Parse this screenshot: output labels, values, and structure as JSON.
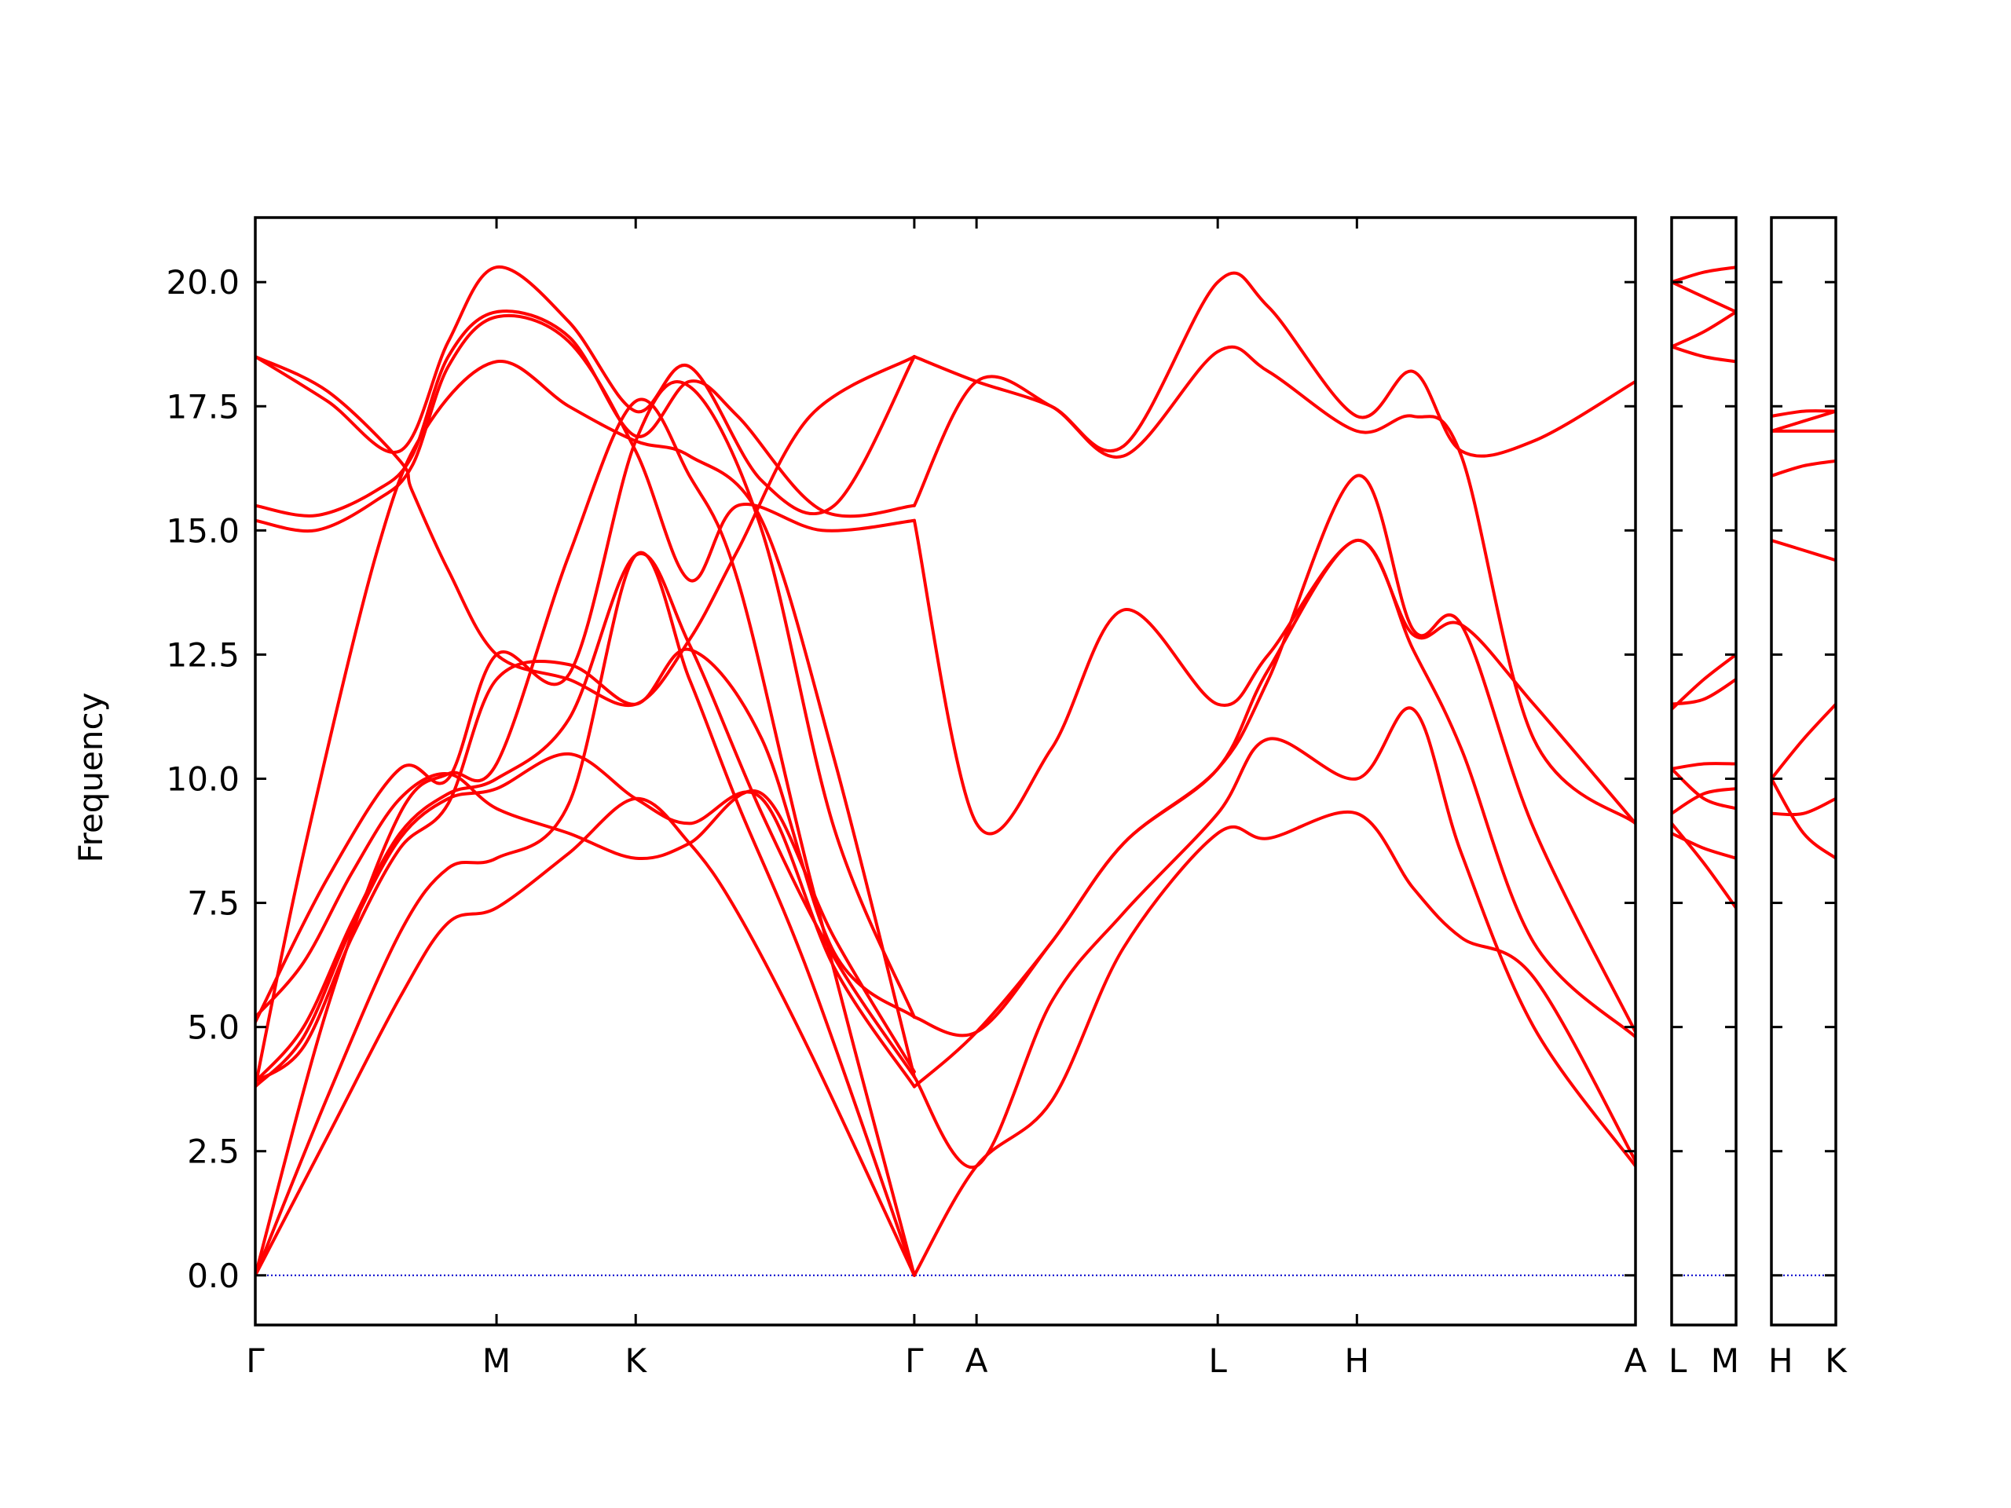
{
  "chart_data": {
    "type": "line",
    "ylabel": "Frequency",
    "ylim": [
      -1.0,
      21.3
    ],
    "yticks": [
      "0.0",
      "2.5",
      "5.0",
      "7.5",
      "10.0",
      "12.5",
      "15.0",
      "17.5",
      "20.0"
    ],
    "colors": {
      "band": "#ff0000",
      "zero_line": "#0000cc",
      "frame": "#000000"
    },
    "panels": [
      {
        "id": "main",
        "xlabels": [
          "Γ",
          "M",
          "K",
          "Γ",
          "A",
          "L",
          "H",
          "A"
        ],
        "kpath": [
          0,
          1,
          1.577,
          2.732,
          2.99,
          3.99,
          4.567,
          5.722
        ],
        "series": [
          {
            "x": [
              0,
              0.3,
              0.6,
              0.8,
              1.0,
              1.3,
              1.577,
              1.8,
              2.0,
              2.3,
              2.732
            ],
            "y": [
              0.0,
              2.8,
              5.6,
              7.1,
              7.4,
              8.5,
              9.6,
              8.7,
              7.3,
              4.5,
              0.0
            ]
          },
          {
            "x": [
              0,
              0.3,
              0.6,
              0.8,
              1.0,
              1.3,
              1.577,
              1.8,
              2.0,
              2.3,
              2.732
            ],
            "y": [
              0.0,
              3.6,
              6.9,
              8.2,
              8.4,
              9.5,
              14.5,
              12.0,
              9.5,
              6.0,
              0.0
            ]
          },
          {
            "x": [
              0,
              0.3,
              0.6,
              0.8,
              1.0,
              1.3,
              1.577,
              1.8,
              2.0,
              2.3,
              2.732
            ],
            "y": [
              0.0,
              5.4,
              9.3,
              10.1,
              10.3,
              14.5,
              17.6,
              16.1,
              14.0,
              8.0,
              0.0
            ]
          },
          {
            "x": [
              0,
              0.2,
              0.4,
              0.6,
              0.8,
              1.0,
              1.3,
              1.577,
              1.8,
              2.1,
              2.4,
              2.732
            ],
            "y": [
              3.8,
              4.8,
              7.0,
              8.8,
              9.6,
              9.8,
              10.5,
              9.6,
              9.1,
              9.6,
              6.2,
              3.8
            ]
          },
          {
            "x": [
              0,
              0.2,
              0.4,
              0.6,
              0.8,
              1.0,
              1.3,
              1.577,
              1.8,
              2.1,
              2.4,
              2.732
            ],
            "y": [
              3.9,
              5.0,
              7.1,
              8.9,
              9.7,
              10.0,
              11.2,
              14.5,
              12.7,
              9.3,
              6.4,
              4.0
            ]
          },
          {
            "x": [
              0,
              0.2,
              0.4,
              0.6,
              0.8,
              1.0,
              1.3,
              1.577,
              1.8,
              2.1,
              2.4,
              2.732
            ],
            "y": [
              5.2,
              6.3,
              8.1,
              9.6,
              10.1,
              9.4,
              8.9,
              8.4,
              8.7,
              9.7,
              6.8,
              4.1
            ]
          },
          {
            "x": [
              0,
              0.2,
              0.4,
              0.6,
              0.8,
              1.0,
              1.3,
              1.577,
              1.8,
              2.1,
              2.4,
              2.732
            ],
            "y": [
              3.9,
              4.6,
              6.8,
              8.6,
              9.5,
              12.0,
              12.3,
              11.5,
              12.6,
              10.8,
              6.5,
              5.2
            ]
          },
          {
            "x": [
              0,
              0.3,
              0.6,
              0.8,
              1.0,
              1.3,
              1.577,
              1.8,
              2.1,
              2.4,
              2.732
            ],
            "y": [
              5.1,
              8.0,
              10.2,
              10.0,
              12.5,
              12.1,
              16.8,
              17.9,
              15.0,
              9.0,
              5.2
            ]
          },
          {
            "x": [
              0,
              0.2,
              0.5,
              0.7,
              1.0,
              1.3,
              1.577,
              1.8,
              2.1,
              2.4,
              2.732
            ],
            "y": [
              3.8,
              8.5,
              14.5,
              17.0,
              18.4,
              17.5,
              16.8,
              16.5,
              15.2,
              10.4,
              4.0
            ]
          },
          {
            "x": [
              0,
              0.25,
              0.5,
              0.65,
              0.8,
              1.0,
              1.3,
              1.577,
              1.8,
              2.0,
              2.35,
              2.732
            ],
            "y": [
              15.2,
              15.0,
              15.6,
              16.3,
              18.3,
              19.3,
              18.8,
              16.6,
              14.0,
              15.5,
              15.0,
              15.2
            ]
          },
          {
            "x": [
              0,
              0.25,
              0.5,
              0.65,
              0.8,
              1.0,
              1.3,
              1.577,
              1.8,
              2.0,
              2.35,
              2.732
            ],
            "y": [
              15.5,
              15.3,
              15.8,
              16.5,
              18.5,
              19.4,
              18.9,
              16.9,
              18.0,
              17.3,
              15.4,
              15.5
            ]
          },
          {
            "x": [
              0,
              0.3,
              0.6,
              0.65,
              0.8,
              1.0,
              1.3,
              1.577,
              1.8,
              2.0,
              2.3,
              2.732
            ],
            "y": [
              18.5,
              17.8,
              16.4,
              15.8,
              14.2,
              12.5,
              12.0,
              11.5,
              12.8,
              14.6,
              17.3,
              18.5
            ]
          },
          {
            "x": [
              0,
              0.3,
              0.6,
              0.8,
              1.0,
              1.3,
              1.577,
              1.8,
              2.1,
              2.4,
              2.732
            ],
            "y": [
              18.5,
              17.6,
              16.6,
              18.8,
              20.3,
              19.2,
              17.4,
              18.3,
              16.0,
              15.5,
              18.5
            ]
          },
          {
            "x": [
              2.732,
              2.99,
              3.3,
              3.6,
              3.99,
              4.2,
              4.567,
              4.8,
              5.0,
              5.3,
              5.722
            ],
            "y": [
              0.0,
              2.2,
              3.5,
              6.6,
              8.9,
              8.8,
              9.3,
              7.8,
              6.8,
              6.0,
              2.3
            ]
          },
          {
            "x": [
              2.732,
              2.99,
              3.3,
              3.6,
              3.99,
              4.2,
              4.567,
              4.8,
              5.0,
              5.3,
              5.722
            ],
            "y": [
              4.0,
              2.2,
              5.5,
              7.3,
              9.3,
              10.8,
              10.0,
              11.4,
              8.5,
              5.0,
              2.2
            ]
          },
          {
            "x": [
              2.732,
              2.99,
              3.3,
              3.6,
              3.99,
              4.2,
              4.567,
              4.8,
              5.0,
              5.3,
              5.722
            ],
            "y": [
              3.8,
              4.9,
              6.7,
              8.7,
              10.2,
              12.2,
              14.8,
              12.6,
              10.6,
              6.7,
              4.8
            ]
          },
          {
            "x": [
              2.732,
              2.99,
              3.3,
              3.6,
              3.99,
              4.2,
              4.567,
              4.8,
              5.0,
              5.3,
              5.722
            ],
            "y": [
              5.2,
              4.9,
              6.7,
              8.7,
              10.2,
              12.0,
              16.1,
              13.0,
              13.1,
              9.0,
              4.9
            ]
          },
          {
            "x": [
              2.732,
              2.99,
              3.3,
              3.6,
              3.99,
              4.2,
              4.567,
              4.8,
              5.0,
              5.3,
              5.722
            ],
            "y": [
              15.2,
              9.1,
              10.6,
              13.4,
              11.5,
              12.5,
              14.8,
              12.9,
              13.1,
              11.5,
              9.1
            ]
          },
          {
            "x": [
              2.732,
              2.99,
              3.3,
              3.6,
              3.99,
              4.2,
              4.567,
              4.8,
              5.0,
              5.3,
              5.722
            ],
            "y": [
              15.5,
              18.0,
              17.5,
              16.5,
              18.6,
              18.2,
              17.0,
              17.3,
              16.5,
              10.8,
              9.1
            ]
          },
          {
            "x": [
              2.732,
              2.99,
              3.3,
              3.6,
              3.99,
              4.2,
              4.567,
              4.8,
              5.0,
              5.3,
              5.722
            ],
            "y": [
              18.5,
              18.0,
              17.5,
              16.7,
              20.0,
              19.5,
              17.3,
              18.2,
              16.6,
              16.8,
              18.0
            ]
          }
        ]
      },
      {
        "id": "L-M",
        "xlabels": [
          "L",
          "M"
        ],
        "series": [
          {
            "x": [
              0,
              0.5,
              1
            ],
            "y": [
              8.9,
              8.6,
              8.4
            ]
          },
          {
            "x": [
              0,
              0.5,
              1
            ],
            "y": [
              9.1,
              8.3,
              7.4
            ]
          },
          {
            "x": [
              0,
              0.5,
              1
            ],
            "y": [
              9.3,
              9.7,
              9.8
            ]
          },
          {
            "x": [
              0,
              0.5,
              1
            ],
            "y": [
              10.2,
              10.3,
              10.3
            ]
          },
          {
            "x": [
              0,
              0.5,
              1
            ],
            "y": [
              10.2,
              9.6,
              9.4
            ]
          },
          {
            "x": [
              0,
              0.5,
              1
            ],
            "y": [
              11.5,
              11.6,
              12.0
            ]
          },
          {
            "x": [
              0,
              0.5,
              1
            ],
            "y": [
              11.4,
              12.0,
              12.5
            ]
          },
          {
            "x": [
              0,
              0.5,
              1
            ],
            "y": [
              18.7,
              19.0,
              19.4
            ]
          },
          {
            "x": [
              0,
              0.5,
              1
            ],
            "y": [
              20.0,
              19.7,
              19.4
            ]
          },
          {
            "x": [
              0,
              0.5,
              1
            ],
            "y": [
              18.7,
              18.5,
              18.4
            ]
          },
          {
            "x": [
              0,
              0.5,
              1
            ],
            "y": [
              20.0,
              20.2,
              20.3
            ]
          }
        ]
      },
      {
        "id": "H-K",
        "xlabels": [
          "H",
          "K"
        ],
        "series": [
          {
            "x": [
              0,
              0.5,
              1
            ],
            "y": [
              9.3,
              9.3,
              9.6
            ]
          },
          {
            "x": [
              0,
              0.5,
              1
            ],
            "y": [
              10.0,
              8.9,
              8.4
            ]
          },
          {
            "x": [
              0,
              0.5,
              1
            ],
            "y": [
              10.0,
              10.8,
              11.5
            ]
          },
          {
            "x": [
              0,
              0.5,
              1
            ],
            "y": [
              14.8,
              14.6,
              14.4
            ]
          },
          {
            "x": [
              0,
              0.5,
              1
            ],
            "y": [
              16.1,
              16.3,
              16.4
            ]
          },
          {
            "x": [
              0,
              0.5,
              1
            ],
            "y": [
              17.0,
              17.0,
              17.0
            ]
          },
          {
            "x": [
              0,
              0.5,
              1
            ],
            "y": [
              17.3,
              17.4,
              17.4
            ]
          },
          {
            "x": [
              0,
              0.5,
              1
            ],
            "y": [
              17.0,
              17.2,
              17.4
            ]
          }
        ]
      }
    ]
  }
}
